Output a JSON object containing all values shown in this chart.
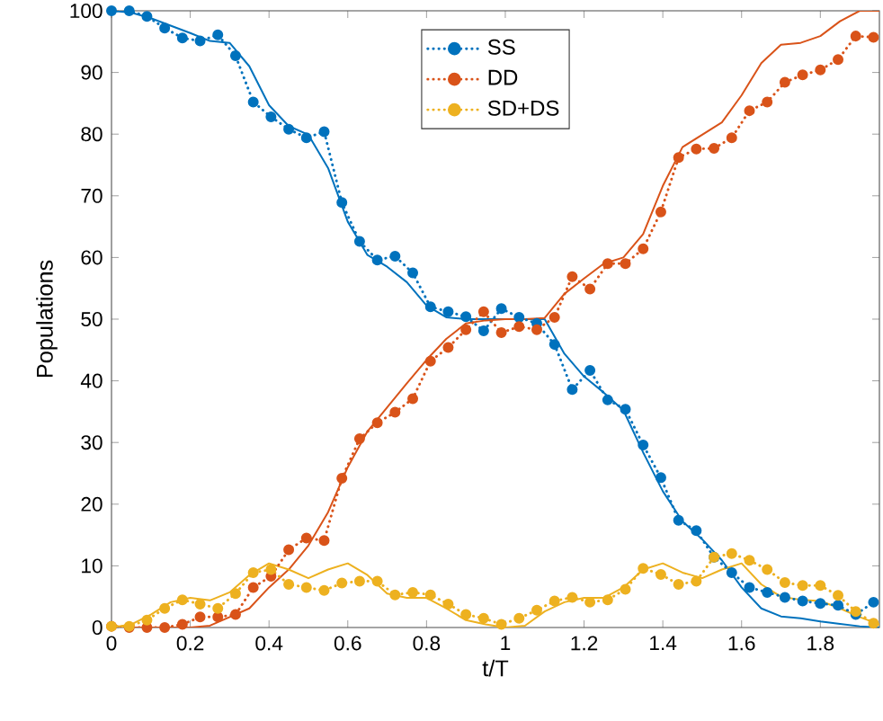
{
  "chart_data": {
    "type": "line",
    "xlabel": "t/T",
    "ylabel": "Populations",
    "xlim": [
      0,
      1.95
    ],
    "ylim": [
      0,
      100
    ],
    "xticks": [
      0,
      0.2,
      0.4,
      0.6,
      0.8,
      1,
      1.2,
      1.4,
      1.6,
      1.8
    ],
    "yticks": [
      0,
      10,
      20,
      30,
      40,
      50,
      60,
      70,
      80,
      90,
      100
    ],
    "grid": false,
    "legend": "top",
    "series": [
      {
        "color": "#0072bd",
        "marker": "none",
        "line_style": "solid",
        "x": [
          0,
          0.05,
          0.1,
          0.15,
          0.2,
          0.25,
          0.3,
          0.35,
          0.4,
          0.45,
          0.5,
          0.55,
          0.6,
          0.65,
          0.7,
          0.75,
          0.8,
          0.85,
          0.9,
          0.95,
          1.0,
          1.05,
          1.1,
          1.15,
          1.2,
          1.25,
          1.3,
          1.35,
          1.4,
          1.45,
          1.5,
          1.55,
          1.6,
          1.65,
          1.7,
          1.75,
          1.8,
          1.85,
          1.9,
          1.95
        ],
        "values": [
          100,
          99.7,
          98.8,
          97.6,
          96.4,
          95.1,
          94.8,
          91,
          84.7,
          81.3,
          79.9,
          74.5,
          65.8,
          60.4,
          58.5,
          56,
          52.2,
          50.3,
          50,
          50,
          50,
          50,
          50,
          44.4,
          40.7,
          38.1,
          35.2,
          28.4,
          22.1,
          17.2,
          14.3,
          10.9,
          6.5,
          3.1,
          1.8,
          1.5,
          1,
          0.6,
          0.2,
          0
        ]
      },
      {
        "color": "#d95319",
        "marker": "none",
        "line_style": "solid",
        "x": [
          0,
          0.05,
          0.1,
          0.15,
          0.2,
          0.25,
          0.3,
          0.35,
          0.4,
          0.45,
          0.5,
          0.55,
          0.6,
          0.65,
          0.7,
          0.75,
          0.8,
          0.85,
          0.9,
          0.95,
          1.0,
          1.05,
          1.1,
          1.15,
          1.2,
          1.25,
          1.3,
          1.35,
          1.4,
          1.45,
          1.5,
          1.55,
          1.6,
          1.65,
          1.7,
          1.75,
          1.8,
          1.85,
          1.9,
          1.95
        ],
        "values": [
          0,
          0,
          0,
          0,
          0,
          0.3,
          1.7,
          3.1,
          6.5,
          9.4,
          13.3,
          18.7,
          26,
          31.8,
          35.7,
          39.6,
          43.4,
          46.8,
          49.3,
          49.8,
          50,
          50,
          50.2,
          54.1,
          56.6,
          59,
          60,
          63.8,
          71.6,
          77.9,
          79.9,
          81.9,
          86.3,
          91.5,
          94.5,
          94.8,
          95.9,
          98.3,
          100,
          100
        ]
      },
      {
        "color": "#edb120",
        "marker": "none",
        "line_style": "solid",
        "x": [
          0,
          0.05,
          0.1,
          0.15,
          0.2,
          0.25,
          0.3,
          0.35,
          0.4,
          0.45,
          0.5,
          0.55,
          0.6,
          0.65,
          0.7,
          0.75,
          0.8,
          0.85,
          0.9,
          0.95,
          1.0,
          1.05,
          1.1,
          1.15,
          1.2,
          1.25,
          1.3,
          1.35,
          1.4,
          1.45,
          1.5,
          1.55,
          1.6,
          1.65,
          1.7,
          1.75,
          1.8,
          1.85,
          1.9,
          1.95
        ],
        "values": [
          0,
          0.5,
          2.1,
          4.1,
          4.8,
          4.4,
          5.7,
          8.5,
          10.4,
          9.4,
          8,
          9.4,
          10.4,
          8.5,
          5.5,
          4.8,
          4.8,
          3.1,
          1.2,
          0.5,
          0,
          0.3,
          2.6,
          4.1,
          4.8,
          4.8,
          6.5,
          9.4,
          10.4,
          8.9,
          8,
          9.4,
          10.4,
          7,
          5,
          4.5,
          4.3,
          3.1,
          1.7,
          0.5
        ]
      },
      {
        "name": "SS",
        "color": "#0072bd",
        "marker": "circle",
        "line_style": "dotted",
        "x": [
          0,
          0.045,
          0.09,
          0.135,
          0.18,
          0.225,
          0.27,
          0.315,
          0.36,
          0.405,
          0.45,
          0.495,
          0.54,
          0.585,
          0.63,
          0.675,
          0.72,
          0.765,
          0.81,
          0.855,
          0.9,
          0.945,
          0.99,
          1.035,
          1.08,
          1.125,
          1.17,
          1.215,
          1.26,
          1.305,
          1.35,
          1.395,
          1.44,
          1.485,
          1.53,
          1.575,
          1.62,
          1.665,
          1.71,
          1.755,
          1.8,
          1.845,
          1.89,
          1.935
        ],
        "values": [
          100,
          100,
          99.1,
          97.2,
          95.6,
          95.1,
          96.1,
          92.7,
          85.2,
          82.8,
          80.8,
          79.4,
          80.4,
          68.9,
          62.6,
          59.6,
          60.2,
          57.5,
          52,
          51.2,
          50.4,
          48.1,
          51.7,
          50.3,
          49.3,
          45.9,
          38.6,
          41.7,
          36.9,
          35.4,
          29.6,
          24.3,
          17.4,
          15.7,
          11.4,
          8.9,
          6.5,
          5.7,
          4.9,
          4.3,
          3.9,
          3.6,
          2.1,
          4.1
        ]
      },
      {
        "name": "DD",
        "color": "#d95319",
        "marker": "circle",
        "line_style": "dotted",
        "x": [
          0,
          0.045,
          0.09,
          0.135,
          0.18,
          0.225,
          0.27,
          0.315,
          0.36,
          0.405,
          0.45,
          0.495,
          0.54,
          0.585,
          0.63,
          0.675,
          0.72,
          0.765,
          0.81,
          0.855,
          0.9,
          0.945,
          0.99,
          1.035,
          1.08,
          1.125,
          1.17,
          1.215,
          1.26,
          1.305,
          1.35,
          1.395,
          1.44,
          1.485,
          1.53,
          1.575,
          1.62,
          1.665,
          1.71,
          1.755,
          1.8,
          1.845,
          1.89,
          1.935
        ],
        "values": [
          0.2,
          0,
          0,
          0,
          0.5,
          1.7,
          1.7,
          2.1,
          6.5,
          8.3,
          12.6,
          14.5,
          14.1,
          24.2,
          30.6,
          33.2,
          34.9,
          37.1,
          43.2,
          45.4,
          48.3,
          51.2,
          47.8,
          48.8,
          48.3,
          50.3,
          56.9,
          54.9,
          59,
          59,
          61.4,
          67.4,
          76.2,
          77.6,
          77.7,
          79.4,
          83.8,
          85.2,
          88.4,
          89.6,
          90.4,
          92.1,
          95.9,
          95.7
        ]
      },
      {
        "name": "SD+DS",
        "color": "#edb120",
        "marker": "circle",
        "line_style": "dotted",
        "x": [
          0,
          0.045,
          0.09,
          0.135,
          0.18,
          0.225,
          0.27,
          0.315,
          0.36,
          0.405,
          0.45,
          0.495,
          0.54,
          0.585,
          0.63,
          0.675,
          0.72,
          0.765,
          0.81,
          0.855,
          0.9,
          0.945,
          0.99,
          1.035,
          1.08,
          1.125,
          1.17,
          1.215,
          1.26,
          1.305,
          1.35,
          1.395,
          1.44,
          1.485,
          1.53,
          1.575,
          1.62,
          1.665,
          1.71,
          1.755,
          1.8,
          1.845,
          1.89,
          1.935
        ],
        "values": [
          0.2,
          0.2,
          1.2,
          3.1,
          4.5,
          3.8,
          3.1,
          5.5,
          8.9,
          9.4,
          7,
          6.5,
          6,
          7.2,
          7.5,
          7.5,
          5.3,
          5.7,
          5.3,
          3.8,
          2.1,
          1.5,
          0.5,
          1.5,
          2.8,
          4.3,
          4.9,
          4.1,
          4.5,
          6.2,
          9.6,
          8.6,
          7,
          7.5,
          11.4,
          12,
          10.9,
          9.4,
          7.3,
          6.8,
          6.8,
          5.2,
          2.6,
          0.7
        ]
      }
    ]
  }
}
